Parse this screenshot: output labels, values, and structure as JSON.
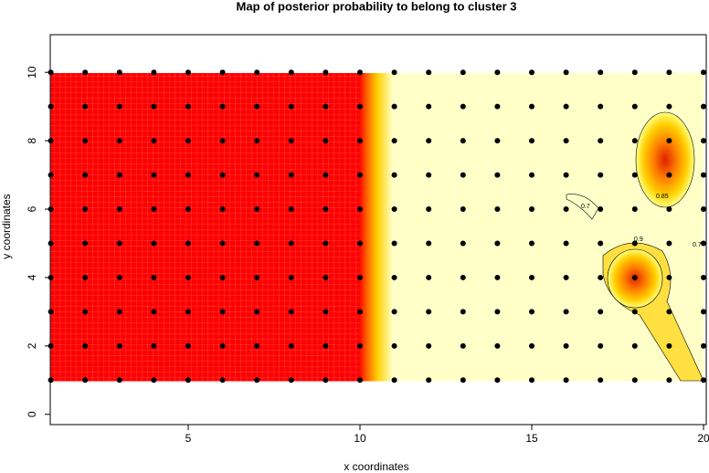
{
  "chart_data": {
    "type": "scatter",
    "title": "Map of posterior probability to belong to cluster  3",
    "x_label": "x coordinates",
    "y_label": "y coordinates",
    "xlim": [
      1,
      20
    ],
    "ylim": [
      -0.3,
      11.1
    ],
    "xticks": [
      5,
      10,
      15,
      20
    ],
    "yticks": [
      0,
      2,
      4,
      6,
      8,
      10
    ],
    "color": "#000000",
    "x": [
      1,
      2,
      3,
      4,
      5,
      6,
      7,
      8,
      9,
      10,
      11,
      12,
      13,
      14,
      15,
      16,
      17,
      18,
      19,
      20,
      1,
      2,
      3,
      4,
      5,
      6,
      7,
      8,
      9,
      10,
      11,
      12,
      13,
      14,
      15,
      16,
      17,
      18,
      19,
      20,
      1,
      2,
      3,
      4,
      5,
      6,
      7,
      8,
      9,
      10,
      11,
      12,
      13,
      14,
      15,
      16,
      17,
      18,
      19,
      20,
      1,
      2,
      3,
      4,
      5,
      6,
      7,
      8,
      9,
      10,
      11,
      12,
      13,
      14,
      15,
      16,
      17,
      18,
      19,
      20,
      1,
      2,
      3,
      4,
      5,
      6,
      7,
      8,
      9,
      10,
      11,
      12,
      13,
      14,
      15,
      16,
      17,
      18,
      19,
      20,
      1,
      2,
      3,
      4,
      5,
      6,
      7,
      8,
      9,
      10,
      11,
      12,
      13,
      14,
      15,
      16,
      17,
      18,
      19,
      20,
      1,
      2,
      3,
      4,
      5,
      6,
      7,
      8,
      9,
      10,
      11,
      12,
      13,
      14,
      15,
      16,
      17,
      18,
      19,
      20,
      1,
      2,
      3,
      4,
      5,
      6,
      7,
      8,
      9,
      10,
      11,
      12,
      13,
      14,
      15,
      16,
      17,
      18,
      19,
      20,
      1,
      2,
      3,
      4,
      5,
      6,
      7,
      8,
      9,
      10,
      11,
      12,
      13,
      14,
      15,
      16,
      17,
      18,
      19,
      20,
      1,
      2,
      3,
      4,
      5,
      6,
      7,
      8,
      9,
      10,
      11,
      12,
      13,
      14,
      15,
      16,
      17,
      18,
      19,
      20
    ],
    "y": [
      1,
      1,
      1,
      1,
      1,
      1,
      1,
      1,
      1,
      1,
      1,
      1,
      1,
      1,
      1,
      1,
      1,
      1,
      1,
      1,
      2,
      2,
      2,
      2,
      2,
      2,
      2,
      2,
      2,
      2,
      2,
      2,
      2,
      2,
      2,
      2,
      2,
      2,
      2,
      2,
      3,
      3,
      3,
      3,
      3,
      3,
      3,
      3,
      3,
      3,
      3,
      3,
      3,
      3,
      3,
      3,
      3,
      3,
      3,
      3,
      4,
      4,
      4,
      4,
      4,
      4,
      4,
      4,
      4,
      4,
      4,
      4,
      4,
      4,
      4,
      4,
      4,
      4,
      4,
      4,
      5,
      5,
      5,
      5,
      5,
      5,
      5,
      5,
      5,
      5,
      5,
      5,
      5,
      5,
      5,
      5,
      5,
      5,
      5,
      5,
      6,
      6,
      6,
      6,
      6,
      6,
      6,
      6,
      6,
      6,
      6,
      6,
      6,
      6,
      6,
      6,
      6,
      6,
      6,
      6,
      7,
      7,
      7,
      7,
      7,
      7,
      7,
      7,
      7,
      7,
      7,
      7,
      7,
      7,
      7,
      7,
      7,
      7,
      7,
      7,
      8,
      8,
      8,
      8,
      8,
      8,
      8,
      8,
      8,
      8,
      8,
      8,
      8,
      8,
      8,
      8,
      8,
      8,
      8,
      8,
      9,
      9,
      9,
      9,
      9,
      9,
      9,
      9,
      9,
      9,
      9,
      9,
      9,
      9,
      9,
      9,
      9,
      9,
      9,
      9,
      10,
      10,
      10,
      10,
      10,
      10,
      10,
      10,
      10,
      10,
      10,
      10,
      10,
      10,
      10,
      10,
      10,
      10,
      10,
      10
    ],
    "annotations": [
      "0.7",
      "0.85",
      "0.9",
      "0.7"
    ]
  }
}
